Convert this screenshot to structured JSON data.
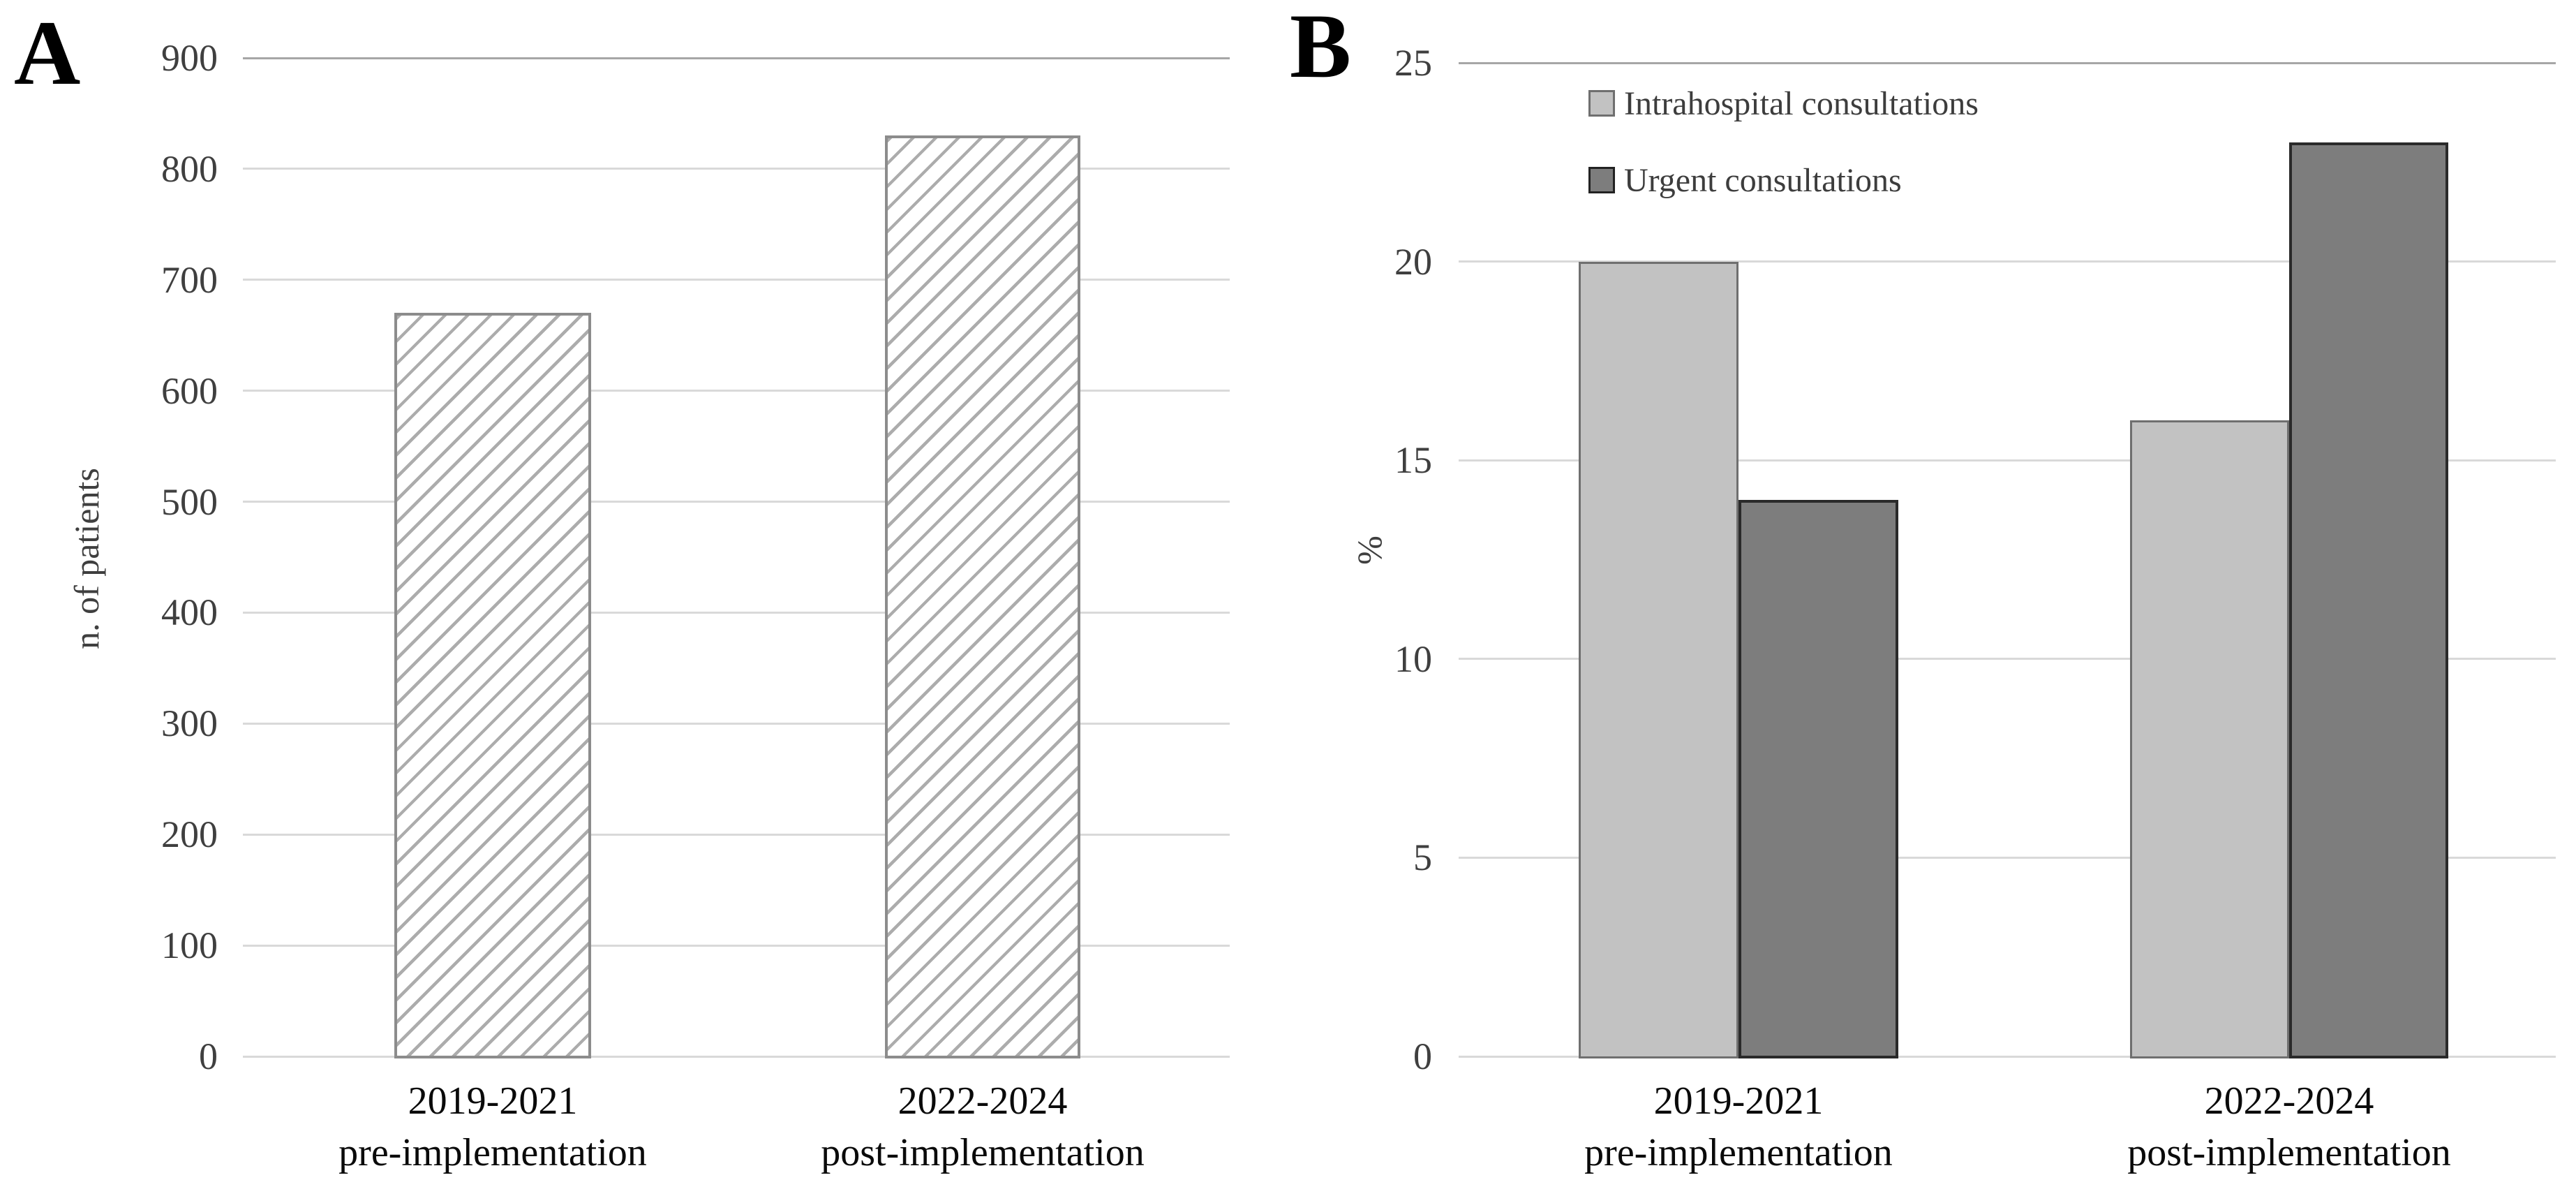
{
  "chart_data": [
    {
      "type": "bar",
      "panel_label": "A",
      "title": "",
      "categories": [
        "2019-2021 pre-implementation",
        "2022-2024 post-implementation"
      ],
      "category_lines": [
        [
          "2019-2021",
          "pre-implementation"
        ],
        [
          "2022-2024",
          "post-implementation"
        ]
      ],
      "values": [
        670,
        830
      ],
      "xlabel": "",
      "ylabel": "n. of patients",
      "ylim": [
        0,
        900
      ],
      "yticks": [
        0,
        100,
        200,
        300,
        400,
        500,
        600,
        700,
        800,
        900
      ],
      "grid": true,
      "bar_pattern": "diagonal-hatch",
      "legend_position": "none"
    },
    {
      "type": "bar",
      "panel_label": "B",
      "title": "",
      "categories": [
        "2019-2021 pre-implementation",
        "2022-2024 post-implementation"
      ],
      "category_lines": [
        [
          "2019-2021",
          "pre-implementation"
        ],
        [
          "2022-2024",
          "post-implementation"
        ]
      ],
      "series": [
        {
          "name": "Intrahospital consultations",
          "values": [
            20,
            16
          ],
          "fill": "#c2c2c2",
          "border": "#6f6f6f"
        },
        {
          "name": "Urgent consultations",
          "values": [
            14,
            23
          ],
          "fill": "#7d7d7d",
          "border": "#2a2a2a"
        }
      ],
      "xlabel": "",
      "ylabel": "%",
      "ylim": [
        0,
        25
      ],
      "yticks": [
        0,
        5,
        10,
        15,
        20,
        25
      ],
      "grid": true,
      "legend_position": "top-left-inside"
    }
  ],
  "style": {
    "grid_color": "#d9d9d9",
    "grid_top_color": "#a6a6a6",
    "hatch_line_color": "#acacac",
    "hatch_border_color": "#8c8c8c",
    "light_fill": "#c2c2c2",
    "light_border": "#6f6f6f",
    "dark_fill": "#7d7d7d",
    "dark_border": "#2a2a2a",
    "tick_text_color": "#3f3f3f",
    "category_text_color": "#0a0a0a",
    "background": "#ffffff"
  }
}
